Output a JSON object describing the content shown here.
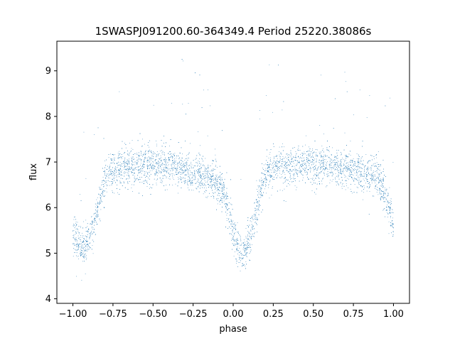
{
  "chart_data": {
    "type": "scatter",
    "title": "1SWASPJ091200.60-364349.4 Period 25220.38086s",
    "xlabel": "phase",
    "ylabel": "flux",
    "xlim": [
      -1.1,
      1.1
    ],
    "ylim": [
      3.9,
      9.65
    ],
    "xticks": [
      -1.0,
      -0.75,
      -0.5,
      -0.25,
      0.0,
      0.25,
      0.5,
      0.75,
      1.0
    ],
    "xtick_labels": [
      "−1.00",
      "−0.75",
      "−0.50",
      "−0.25",
      "0.00",
      "0.25",
      "0.50",
      "0.75",
      "1.00"
    ],
    "yticks": [
      4,
      5,
      6,
      7,
      8,
      9
    ],
    "ytick_labels": [
      "4",
      "5",
      "6",
      "7",
      "8",
      "9"
    ],
    "grid": false,
    "legend": false,
    "marker_color": "#1f77b4",
    "series": [
      {
        "x": [
          -1.0,
          -0.98,
          -0.96,
          -0.94,
          -0.92,
          -0.9,
          -0.88,
          -0.86,
          -0.84,
          -0.82,
          -0.8,
          -0.78,
          -0.76,
          -0.74,
          -0.72,
          -0.7,
          -0.65,
          -0.6,
          -0.55,
          -0.5,
          -0.45,
          -0.4,
          -0.35,
          -0.3,
          -0.25,
          -0.2,
          -0.15,
          -0.1,
          -0.08,
          -0.06,
          -0.04,
          -0.02,
          0.0,
          0.02,
          0.04,
          0.06,
          0.08,
          0.1,
          0.12,
          0.14,
          0.16,
          0.18,
          0.2,
          0.22,
          0.24,
          0.26,
          0.28,
          0.3,
          0.35,
          0.4,
          0.45,
          0.5,
          0.55,
          0.6,
          0.65,
          0.7,
          0.75,
          0.8,
          0.85,
          0.9,
          0.92,
          0.94,
          0.96,
          0.98,
          1.0
        ],
        "y": [
          5.5,
          5.35,
          5.2,
          5.1,
          5.15,
          5.3,
          5.5,
          5.75,
          6.05,
          6.35,
          6.6,
          6.75,
          6.8,
          6.82,
          6.85,
          6.88,
          6.9,
          6.92,
          6.93,
          6.93,
          6.92,
          6.9,
          6.87,
          6.83,
          6.78,
          6.72,
          6.65,
          6.6,
          6.5,
          6.3,
          6.05,
          5.75,
          5.45,
          5.2,
          5.05,
          5.0,
          5.1,
          5.3,
          5.55,
          5.85,
          6.15,
          6.45,
          6.7,
          6.8,
          6.82,
          6.84,
          6.86,
          6.88,
          6.9,
          6.92,
          6.93,
          6.93,
          6.92,
          6.9,
          6.88,
          6.85,
          6.82,
          6.78,
          6.72,
          6.65,
          6.55,
          6.35,
          6.1,
          5.85,
          5.6
        ]
      }
    ]
  }
}
